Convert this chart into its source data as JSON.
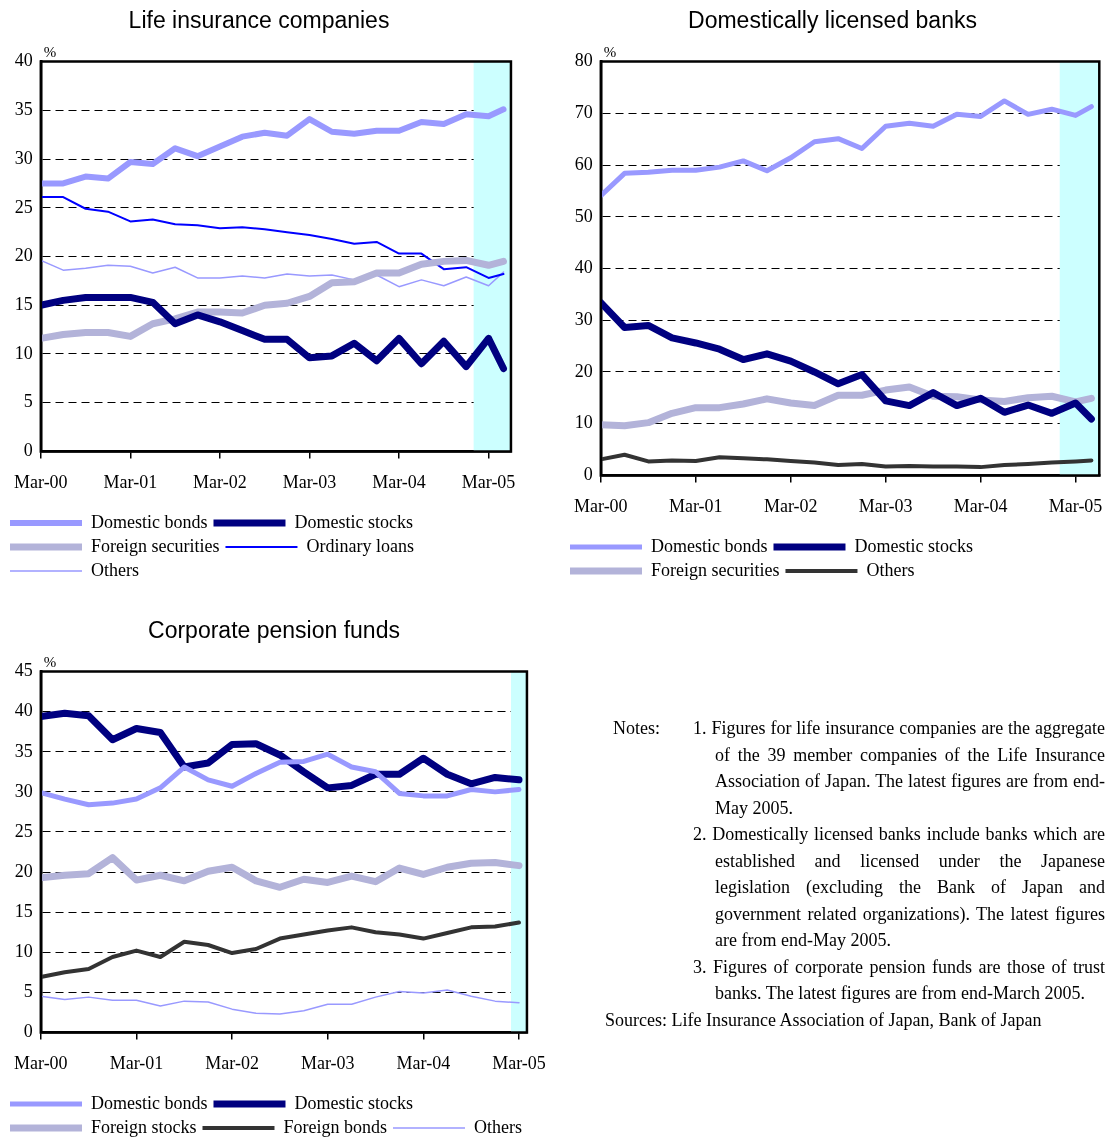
{
  "chart_data": [
    {
      "type": "line",
      "title": "Life insurance companies",
      "ylabel": "%",
      "legend": "bottom",
      "grid": "y",
      "x": [
        "2000-03",
        "2000-06",
        "2000-09",
        "2000-12",
        "2001-03",
        "2001-06",
        "2001-09",
        "2001-12",
        "2002-03",
        "2002-06",
        "2002-09",
        "2002-12",
        "2003-03",
        "2003-06",
        "2003-09",
        "2003-12",
        "2004-03",
        "2004-06",
        "2004-09",
        "2004-12",
        "2005-03",
        "2005-05"
      ],
      "xlim": [
        "2000-03",
        "2005-06"
      ],
      "xticks": [
        {
          "value": "2000-03",
          "label": "Mar-00"
        },
        {
          "value": "2001-03",
          "label": "Mar-01"
        },
        {
          "value": "2002-03",
          "label": "Mar-02"
        },
        {
          "value": "2003-03",
          "label": "Mar-03"
        },
        {
          "value": "2004-03",
          "label": "Mar-04"
        },
        {
          "value": "2005-03",
          "label": "Mar-05"
        }
      ],
      "ylim": [
        0,
        40
      ],
      "yticks": [
        0,
        5,
        10,
        15,
        20,
        25,
        30,
        35,
        40
      ],
      "bands": [
        {
          "axis": "x",
          "from": "2005-01",
          "to": "2005-06",
          "color": "#ccffff"
        }
      ],
      "series": [
        {
          "name": "Domestic bonds",
          "color": "#9999ff",
          "values": [
            27.5,
            27.5,
            28.2,
            28.0,
            29.7,
            29.5,
            31.1,
            30.3,
            31.3,
            32.3,
            32.7,
            32.4,
            34.1,
            32.8,
            32.6,
            32.9,
            32.9,
            33.8,
            33.6,
            34.6,
            34.4,
            35.1
          ]
        },
        {
          "name": "Domestic stocks",
          "color": "#000080",
          "values": [
            15.0,
            15.5,
            15.8,
            15.8,
            15.8,
            15.3,
            13.1,
            14.0,
            13.3,
            12.4,
            11.5,
            11.5,
            9.6,
            9.8,
            11.1,
            9.3,
            11.6,
            9.0,
            11.3,
            8.7,
            11.6,
            8.5
          ]
        },
        {
          "name": "Foreign securities",
          "color": "#b3b3d9",
          "values": [
            11.6,
            12.0,
            12.2,
            12.2,
            11.8,
            13.1,
            13.6,
            14.3,
            14.3,
            14.2,
            15.0,
            15.2,
            15.9,
            17.3,
            17.4,
            18.3,
            18.3,
            19.2,
            19.5,
            19.6,
            19.1,
            19.5
          ]
        },
        {
          "name": "Ordinary loans",
          "color": "#0000ff",
          "values": [
            26.1,
            26.1,
            24.9,
            24.6,
            23.6,
            23.8,
            23.3,
            23.2,
            22.9,
            23.0,
            22.8,
            22.5,
            22.2,
            21.8,
            21.3,
            21.5,
            20.3,
            20.3,
            18.7,
            18.9,
            17.8,
            18.2
          ]
        },
        {
          "name": "Others",
          "color": "#9999ff",
          "values": [
            19.6,
            18.6,
            18.8,
            19.1,
            19.0,
            18.3,
            18.9,
            17.8,
            17.8,
            18.0,
            17.8,
            18.2,
            18.0,
            18.1,
            17.6,
            18.1,
            16.9,
            17.6,
            17.0,
            17.9,
            17.0,
            18.4
          ]
        }
      ]
    },
    {
      "type": "line",
      "title": "Domestically licensed banks",
      "ylabel": "%",
      "legend": "bottom",
      "grid": "y",
      "x": [
        "2000-03",
        "2000-06",
        "2000-09",
        "2000-12",
        "2001-03",
        "2001-06",
        "2001-09",
        "2001-12",
        "2002-03",
        "2002-06",
        "2002-09",
        "2002-12",
        "2003-03",
        "2003-06",
        "2003-09",
        "2003-12",
        "2004-03",
        "2004-06",
        "2004-09",
        "2004-12",
        "2005-03",
        "2005-05"
      ],
      "xlim": [
        "2000-03",
        "2005-06"
      ],
      "xticks": [
        {
          "value": "2000-03",
          "label": "Mar-00"
        },
        {
          "value": "2001-03",
          "label": "Mar-01"
        },
        {
          "value": "2002-03",
          "label": "Mar-02"
        },
        {
          "value": "2003-03",
          "label": "Mar-03"
        },
        {
          "value": "2004-03",
          "label": "Mar-04"
        },
        {
          "value": "2005-03",
          "label": "Mar-05"
        }
      ],
      "ylim": [
        0,
        80
      ],
      "yticks": [
        0,
        10,
        20,
        30,
        40,
        50,
        60,
        70,
        80
      ],
      "bands": [
        {
          "axis": "x",
          "from": "2005-01",
          "to": "2005-06",
          "color": "#ccffff"
        }
      ],
      "series": [
        {
          "name": "Domestic bonds",
          "color": "#9999ff",
          "values": [
            54.1,
            58.4,
            58.6,
            59.0,
            59.0,
            59.6,
            60.8,
            58.9,
            61.4,
            64.5,
            65.1,
            63.2,
            67.5,
            68.1,
            67.5,
            69.8,
            69.4,
            72.4,
            69.8,
            70.8,
            69.6,
            71.3
          ]
        },
        {
          "name": "Domestic stocks",
          "color": "#000080",
          "values": [
            33.4,
            28.6,
            29.0,
            26.6,
            25.6,
            24.4,
            22.4,
            23.5,
            22.1,
            20.0,
            17.7,
            19.5,
            14.4,
            13.5,
            16.0,
            13.5,
            14.9,
            12.2,
            13.6,
            12.0,
            14.0,
            10.9
          ]
        },
        {
          "name": "Foreign securities",
          "color": "#b3b3d9",
          "values": [
            9.8,
            9.6,
            10.2,
            12.0,
            13.1,
            13.1,
            13.8,
            14.8,
            14.0,
            13.5,
            15.5,
            15.5,
            16.5,
            17.1,
            15.3,
            15.2,
            14.6,
            14.3,
            15.0,
            15.3,
            14.2,
            14.9
          ]
        },
        {
          "name": "Others",
          "color": "#333333",
          "values": [
            3.1,
            4.0,
            2.7,
            2.9,
            2.8,
            3.5,
            3.3,
            3.1,
            2.8,
            2.5,
            2.0,
            2.2,
            1.7,
            1.8,
            1.7,
            1.7,
            1.6,
            2.0,
            2.2,
            2.5,
            2.7,
            2.9
          ]
        }
      ]
    },
    {
      "type": "line",
      "title": "Corporate pension funds",
      "ylabel": "%",
      "legend": "bottom",
      "grid": "y",
      "x": [
        "2000-03",
        "2000-06",
        "2000-09",
        "2000-12",
        "2001-03",
        "2001-06",
        "2001-09",
        "2001-12",
        "2002-03",
        "2002-06",
        "2002-09",
        "2002-12",
        "2003-03",
        "2003-06",
        "2003-09",
        "2003-12",
        "2004-03",
        "2004-06",
        "2004-09",
        "2004-12",
        "2005-03"
      ],
      "xlim": [
        "2000-03",
        "2005-04"
      ],
      "xticks": [
        {
          "value": "2000-03",
          "label": "Mar-00"
        },
        {
          "value": "2001-03",
          "label": "Mar-01"
        },
        {
          "value": "2002-03",
          "label": "Mar-02"
        },
        {
          "value": "2003-03",
          "label": "Mar-03"
        },
        {
          "value": "2004-03",
          "label": "Mar-04"
        },
        {
          "value": "2005-03",
          "label": "Mar-05"
        }
      ],
      "ylim": [
        0,
        45
      ],
      "yticks": [
        0,
        5,
        10,
        15,
        20,
        25,
        30,
        35,
        40,
        45
      ],
      "bands": [
        {
          "axis": "x",
          "from": "2005-02",
          "to": "2005-04",
          "color": "#ccffff"
        }
      ],
      "series": [
        {
          "name": "Domestic bonds",
          "color": "#9999ff",
          "values": [
            29.9,
            29.1,
            28.4,
            28.6,
            29.1,
            30.5,
            33.1,
            31.5,
            30.7,
            32.3,
            33.7,
            33.8,
            34.7,
            33.1,
            32.5,
            29.8,
            29.5,
            29.5,
            30.3,
            30.0,
            30.3
          ]
        },
        {
          "name": "Domestic stocks",
          "color": "#000080",
          "values": [
            39.4,
            39.8,
            39.5,
            36.5,
            37.9,
            37.4,
            33.1,
            33.6,
            35.9,
            36.0,
            34.6,
            32.5,
            30.5,
            30.8,
            32.2,
            32.2,
            34.2,
            32.2,
            31.0,
            31.8,
            31.5
          ]
        },
        {
          "name": "Foreign stocks",
          "color": "#b3b3d9",
          "values": [
            19.3,
            19.6,
            19.8,
            21.8,
            19.0,
            19.6,
            18.9,
            20.1,
            20.6,
            18.9,
            18.1,
            19.1,
            18.7,
            19.5,
            18.8,
            20.5,
            19.7,
            20.6,
            21.1,
            21.2,
            20.8
          ]
        },
        {
          "name": "Foreign bonds",
          "color": "#333333",
          "values": [
            6.9,
            7.5,
            7.9,
            9.4,
            10.2,
            9.4,
            11.3,
            10.9,
            9.9,
            10.4,
            11.7,
            12.2,
            12.7,
            13.1,
            12.5,
            12.2,
            11.7,
            12.4,
            13.1,
            13.2,
            13.7
          ]
        },
        {
          "name": "Others",
          "color": "#9999ff",
          "values": [
            4.5,
            4.1,
            4.4,
            4.0,
            4.0,
            3.3,
            3.9,
            3.8,
            2.9,
            2.4,
            2.3,
            2.7,
            3.5,
            3.5,
            4.4,
            5.1,
            4.9,
            5.3,
            4.5,
            3.9,
            3.7
          ]
        }
      ]
    },
    {
      "type": "other",
      "annotations": [
        "Notes:",
        "1. Figures for life insurance companies are the aggregate of the 39 member companies of the Life Insurance Association of Japan. The latest figures are from end-May 2005.",
        "2. Domestically licensed banks include banks which are established and licensed under the Japanese legislation (excluding the Bank of Japan and government related organizations). The latest figures are from end-May 2005.",
        "3. Figures of corporate pension funds are those of trust banks. The latest figures are from end-March 2005.",
        "Sources: Life Insurance Association of Japan, Bank of Japan"
      ]
    }
  ]
}
